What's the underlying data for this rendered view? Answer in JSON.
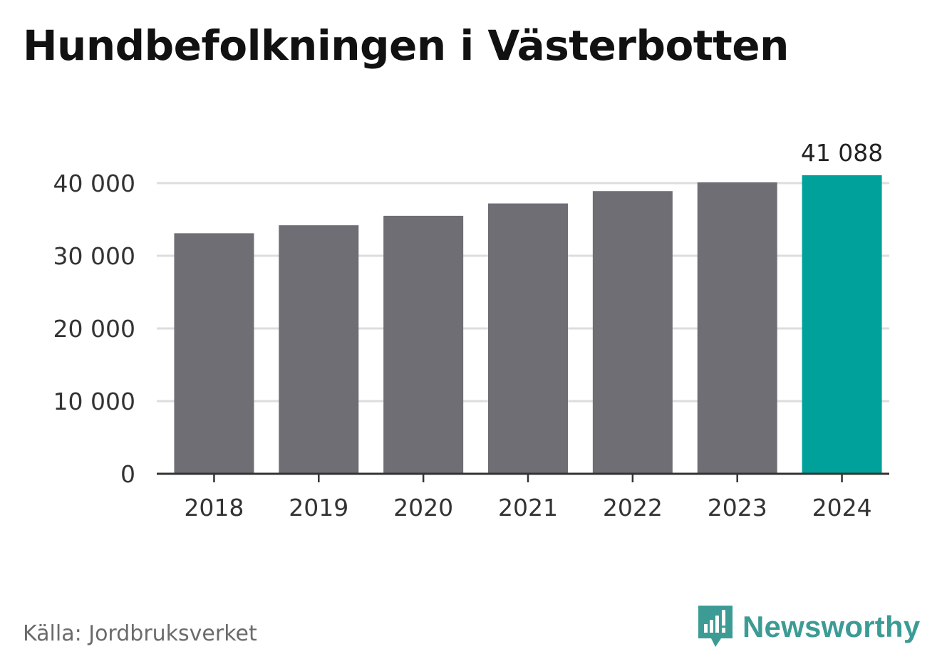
{
  "title": "Hundbefolkningen i Västerbotten",
  "source": "Källa: Jordbruksverket",
  "brand": {
    "name": "Newsworthy",
    "icon": "newsworthy-logo-icon",
    "color": "#3c9c95"
  },
  "chart_data": {
    "type": "bar",
    "categories": [
      "2018",
      "2019",
      "2020",
      "2021",
      "2022",
      "2023",
      "2024"
    ],
    "values": [
      33100,
      34200,
      35500,
      37200,
      38900,
      40100,
      41088
    ],
    "ylim": [
      0,
      42000
    ],
    "yticks": [
      0,
      10000,
      20000,
      30000,
      40000
    ],
    "ytick_labels": [
      "0",
      "10 000",
      "20 000",
      "30 000",
      "40 000"
    ],
    "highlight": {
      "index": 6,
      "label": "41 088"
    },
    "colors": {
      "bar": "#6f6e75",
      "highlight": "#00a19a",
      "grid": "#dddddd",
      "axis": "#333333"
    },
    "grid": true,
    "xlabel": "",
    "ylabel": ""
  }
}
